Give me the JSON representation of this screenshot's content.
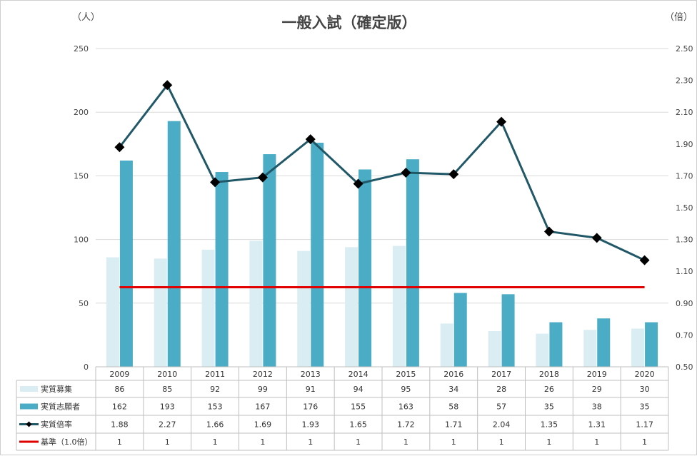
{
  "chart_data": {
    "type": "bar",
    "title": "一般入試（確定版）",
    "left_unit": "（人）",
    "right_unit": "（倍）",
    "ylim": [
      0,
      250
    ],
    "y_ticks": [
      "0",
      "50",
      "100",
      "150",
      "200",
      "250"
    ],
    "y2lim": [
      0.5,
      2.5
    ],
    "y2_ticks": [
      "0.50",
      "0.70",
      "0.90",
      "1.10",
      "1.30",
      "1.50",
      "1.70",
      "1.90",
      "2.10",
      "2.30",
      "2.50"
    ],
    "grid": true,
    "categories": [
      "2009",
      "2010",
      "2011",
      "2012",
      "2013",
      "2014",
      "2015",
      "2016",
      "2017",
      "2018",
      "2019",
      "2020"
    ],
    "series": [
      {
        "name": "実質募集",
        "type": "bar",
        "axis": "left",
        "color": "#daedf3",
        "values": [
          86,
          85,
          92,
          99,
          91,
          94,
          95,
          34,
          28,
          26,
          29,
          30
        ],
        "labels": [
          "86",
          "85",
          "92",
          "99",
          "91",
          "94",
          "95",
          "34",
          "28",
          "26",
          "29",
          "30"
        ]
      },
      {
        "name": "実質志願者",
        "type": "bar",
        "axis": "left",
        "color": "#4bacc6",
        "values": [
          162,
          193,
          153,
          167,
          176,
          155,
          163,
          58,
          57,
          35,
          38,
          35
        ],
        "labels": [
          "162",
          "193",
          "153",
          "167",
          "176",
          "155",
          "163",
          "58",
          "57",
          "35",
          "38",
          "35"
        ]
      },
      {
        "name": "実質倍率",
        "type": "line",
        "axis": "right",
        "color": "#215868",
        "marker": "diamond",
        "values": [
          1.88,
          2.27,
          1.66,
          1.69,
          1.93,
          1.65,
          1.72,
          1.71,
          2.04,
          1.35,
          1.31,
          1.17
        ],
        "labels": [
          "1.88",
          "2.27",
          "1.66",
          "1.69",
          "1.93",
          "1.65",
          "1.72",
          "1.71",
          "2.04",
          "1.35",
          "1.31",
          "1.17"
        ]
      },
      {
        "name": "基準（1.0倍）",
        "type": "line",
        "axis": "right",
        "color": "#e00000",
        "values": [
          1,
          1,
          1,
          1,
          1,
          1,
          1,
          1,
          1,
          1,
          1,
          1
        ],
        "labels": [
          "1",
          "1",
          "1",
          "1",
          "1",
          "1",
          "1",
          "1",
          "1",
          "1",
          "1",
          "1"
        ]
      }
    ]
  }
}
